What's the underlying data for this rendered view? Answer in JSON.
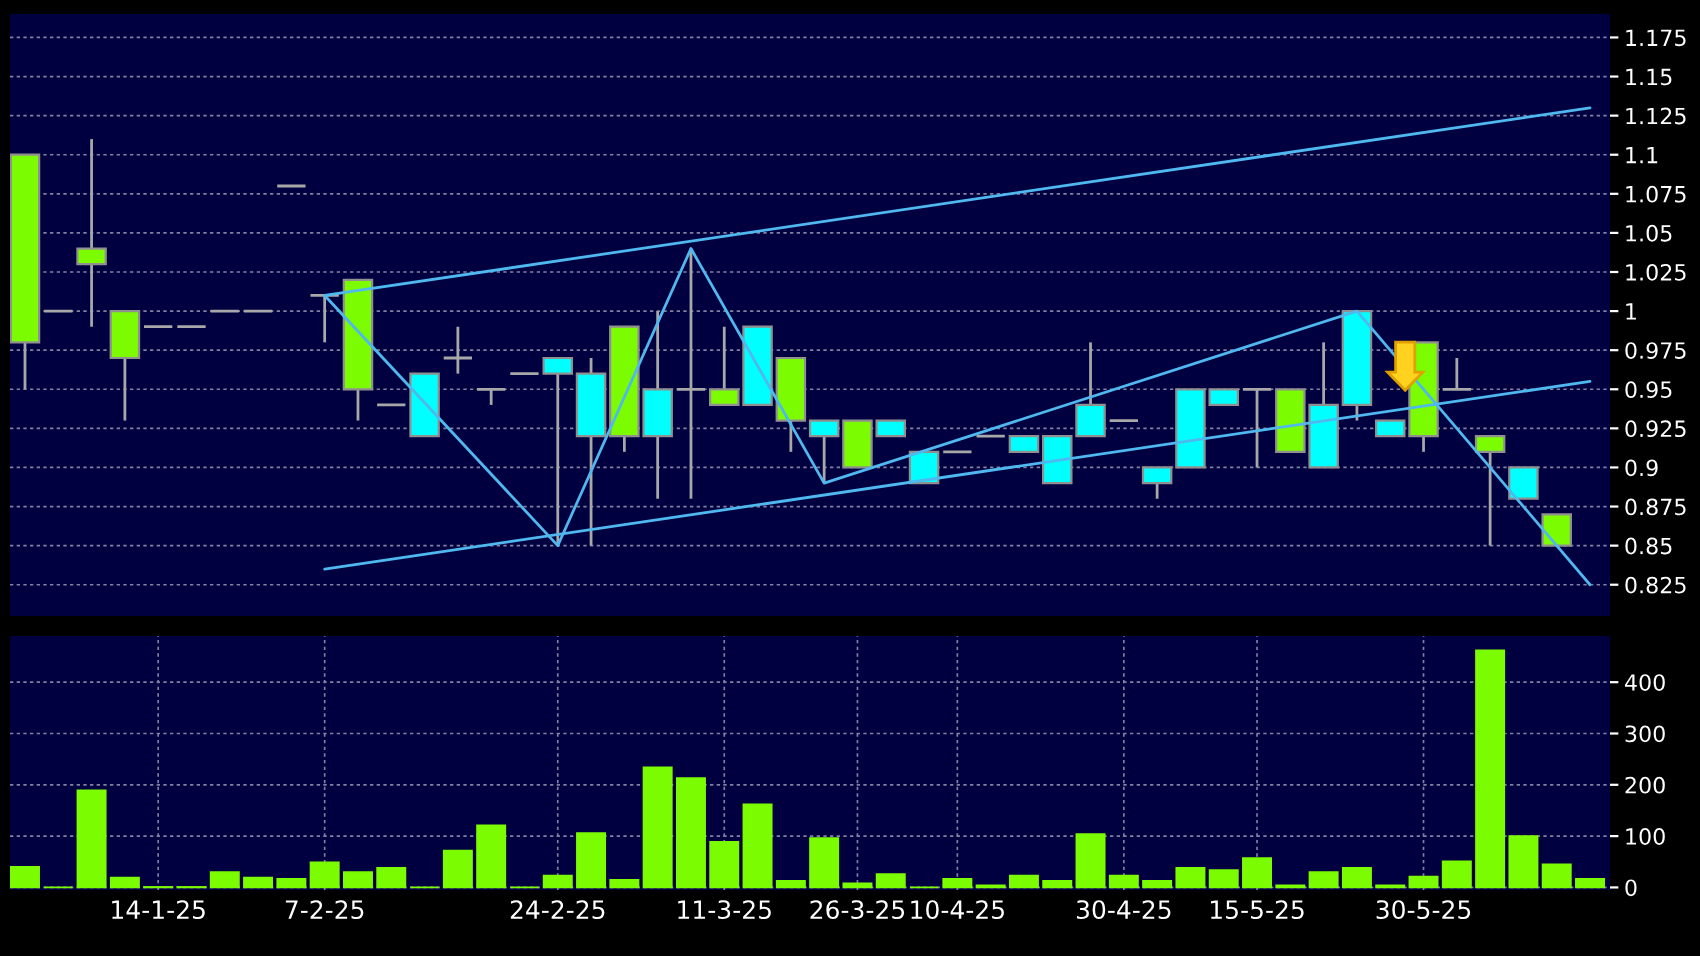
{
  "chart_data": [
    {
      "type": "candlestick",
      "categories": [
        null,
        null,
        null,
        null,
        null,
        null,
        null,
        null,
        null,
        null,
        null,
        null,
        null,
        null,
        null,
        null,
        null,
        null,
        null,
        null,
        null,
        null,
        null,
        null,
        null,
        null,
        null,
        null,
        null,
        null,
        null,
        null,
        null,
        null,
        null,
        null,
        null,
        null,
        null,
        null,
        null,
        null,
        null,
        null,
        null,
        null,
        null,
        null
      ],
      "ohlc": [
        [
          0.98,
          1.1,
          0.95,
          1.1
        ],
        [
          1,
          1,
          1,
          1
        ],
        [
          1.03,
          1.11,
          0.99,
          1.04
        ],
        [
          0.97,
          1,
          0.93,
          1
        ],
        [
          0.99,
          0.99,
          0.99,
          0.99
        ],
        [
          0.99,
          0.99,
          0.99,
          0.99
        ],
        [
          1,
          1,
          1,
          1
        ],
        [
          1,
          1,
          1,
          1
        ],
        [
          1.08,
          1.08,
          1.08,
          1.08
        ],
        [
          1.01,
          1.01,
          0.98,
          1.01
        ],
        [
          0.95,
          1.02,
          0.93,
          1.02
        ],
        [
          0.94,
          0.94,
          0.94,
          0.94
        ],
        [
          0.96,
          0.96,
          0.92,
          0.92
        ],
        [
          0.97,
          0.99,
          0.96,
          0.97
        ],
        [
          0.95,
          0.95,
          0.94,
          0.95
        ],
        [
          0.96,
          0.96,
          0.96,
          0.96
        ],
        [
          0.97,
          0.97,
          0.85,
          0.96
        ],
        [
          0.96,
          0.97,
          0.85,
          0.92
        ],
        [
          0.92,
          0.99,
          0.91,
          0.99
        ],
        [
          0.95,
          1,
          0.88,
          0.92
        ],
        [
          0.95,
          1.04,
          0.88,
          0.95
        ],
        [
          0.94,
          0.99,
          0.94,
          0.95
        ],
        [
          0.99,
          0.99,
          0.94,
          0.94
        ],
        [
          0.93,
          0.97,
          0.91,
          0.97
        ],
        [
          0.93,
          0.93,
          0.89,
          0.92
        ],
        [
          0.9,
          0.93,
          0.9,
          0.93
        ],
        [
          0.93,
          0.93,
          0.92,
          0.92
        ],
        [
          0.91,
          0.91,
          0.89,
          0.89
        ],
        [
          0.91,
          0.91,
          0.91,
          0.91
        ],
        [
          0.92,
          0.92,
          0.92,
          0.92
        ],
        [
          0.92,
          0.92,
          0.91,
          0.91
        ],
        [
          0.92,
          0.92,
          0.89,
          0.89
        ],
        [
          0.94,
          0.98,
          0.92,
          0.92
        ],
        [
          0.93,
          0.93,
          0.93,
          0.93
        ],
        [
          0.9,
          0.9,
          0.88,
          0.89
        ],
        [
          0.95,
          0.95,
          0.9,
          0.9
        ],
        [
          0.95,
          0.95,
          0.94,
          0.94
        ],
        [
          0.95,
          0.95,
          0.9,
          0.95
        ],
        [
          0.91,
          0.95,
          0.91,
          0.95
        ],
        [
          0.94,
          0.98,
          0.9,
          0.9
        ],
        [
          1,
          1,
          0.93,
          0.94
        ],
        [
          0.93,
          0.93,
          0.92,
          0.92
        ],
        [
          0.92,
          0.98,
          0.91,
          0.98
        ],
        [
          0.95,
          0.97,
          0.95,
          0.95
        ],
        [
          0.91,
          0.92,
          0.85,
          0.92
        ],
        [
          0.9,
          0.9,
          0.88,
          0.88
        ],
        [
          0.85,
          0.87,
          0.85,
          0.87
        ],
        null
      ],
      "colors": [
        "#7cfc00",
        "#a8a8a8",
        "#7cfc00",
        "#7cfc00",
        "#a8a8a8",
        "#a8a8a8",
        "#a8a8a8",
        "#a8a8a8",
        "#a8a8a8",
        "#a8a8a8",
        "#7cfc00",
        "#a8a8a8",
        "#00ffff",
        "#a8a8a8",
        "#a8a8a8",
        "#a8a8a8",
        "#00ffff",
        "#00ffff",
        "#7cfc00",
        "#00ffff",
        "#a8a8a8",
        "#7cfc00",
        "#00ffff",
        "#7cfc00",
        "#00ffff",
        "#7cfc00",
        "#00ffff",
        "#00ffff",
        "#a8a8a8",
        "#a8a8a8",
        "#00ffff",
        "#00ffff",
        "#00ffff",
        "#a8a8a8",
        "#00ffff",
        "#00ffff",
        "#00ffff",
        "#a8a8a8",
        "#7cfc00",
        "#00ffff",
        "#00ffff",
        "#00ffff",
        "#7cfc00",
        "#a8a8a8",
        "#7cfc00",
        "#00ffff",
        "#7cfc00",
        null
      ],
      "series": [
        {
          "type": "line",
          "color": "#4fb8ee",
          "values": [
            null,
            null,
            null,
            null,
            null,
            null,
            null,
            null,
            null,
            1.01,
            null,
            null,
            null,
            null,
            null,
            null,
            null,
            null,
            null,
            null,
            null,
            null,
            null,
            null,
            null,
            null,
            null,
            null,
            null,
            null,
            null,
            null,
            null,
            null,
            null,
            null,
            null,
            null,
            null,
            null,
            null,
            null,
            null,
            null,
            null,
            null,
            null,
            1.13
          ]
        },
        {
          "type": "line",
          "color": "#4fb8ee",
          "values": [
            null,
            null,
            null,
            null,
            null,
            null,
            null,
            null,
            null,
            0.835,
            null,
            null,
            null,
            null,
            null,
            null,
            null,
            null,
            null,
            null,
            null,
            null,
            null,
            null,
            null,
            null,
            null,
            null,
            null,
            null,
            null,
            null,
            null,
            null,
            null,
            null,
            null,
            null,
            null,
            null,
            null,
            null,
            null,
            null,
            null,
            null,
            null,
            0.955
          ]
        },
        {
          "type": "line",
          "color": "#4fb8ee",
          "values": [
            null,
            null,
            null,
            null,
            null,
            null,
            null,
            null,
            null,
            1.01,
            null,
            null,
            null,
            null,
            null,
            null,
            0.85,
            null,
            null,
            null,
            1.04,
            null,
            null,
            null,
            0.89,
            null,
            null,
            null,
            null,
            null,
            null,
            null,
            null,
            null,
            null,
            null,
            null,
            null,
            null,
            null,
            1,
            null,
            null,
            null,
            null,
            null,
            null,
            0.825
          ]
        }
      ],
      "ylim": [
        0.805,
        1.19
      ],
      "yticks": [
        0.825,
        0.85,
        0.875,
        0.9,
        0.925,
        0.95,
        0.975,
        1,
        1.025,
        1.05,
        1.075,
        1.1,
        1.125,
        1.15,
        1.175
      ],
      "grid": true,
      "tick_labels": "y"
    },
    {
      "type": "bar",
      "categories": [
        null,
        null,
        null,
        null,
        "14-1-25",
        null,
        null,
        null,
        null,
        "7-2-25",
        null,
        null,
        null,
        null,
        null,
        null,
        "24-2-25",
        null,
        null,
        null,
        null,
        "11-3-25",
        null,
        null,
        null,
        "26-3-25",
        null,
        null,
        "10-4-25",
        null,
        null,
        null,
        null,
        "30-4-25",
        null,
        null,
        null,
        "15-5-25",
        null,
        null,
        null,
        null,
        "30-5-25",
        null,
        null,
        null,
        null,
        null
      ],
      "values": [
        40,
        0,
        189,
        19,
        1,
        1,
        30,
        19,
        17,
        49,
        30,
        38,
        0,
        72,
        121,
        0,
        23,
        106,
        15,
        234,
        213,
        89,
        162,
        13,
        96,
        8,
        26,
        0,
        17,
        4,
        23,
        13,
        104,
        23,
        13,
        38,
        34,
        57,
        4,
        30,
        38,
        4,
        21,
        51,
        462,
        100,
        45,
        17
      ],
      "color": "#7cfc00",
      "ylim": [
        -5,
        490
      ],
      "yticks": [
        0,
        100,
        200,
        300,
        400
      ],
      "grid": true
    }
  ]
}
